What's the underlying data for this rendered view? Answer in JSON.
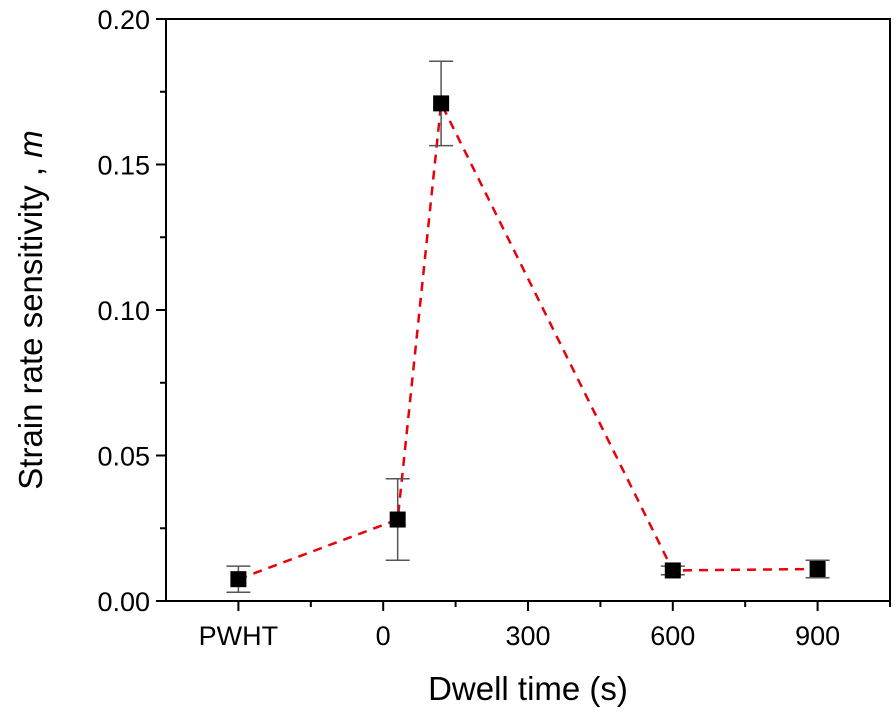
{
  "chart_data": {
    "type": "scatter",
    "xlabel": "Dwell time (s)",
    "ylabel": "Strain rate sensitivity , ",
    "ylabel_symbol": "m",
    "x_tick_labels": [
      {
        "value": -300,
        "label": "PWHT"
      },
      {
        "value": 0,
        "label": "0"
      },
      {
        "value": 300,
        "label": "300"
      },
      {
        "value": 600,
        "label": "600"
      },
      {
        "value": 900,
        "label": "900"
      }
    ],
    "y_ticks": [
      0.0,
      0.05,
      0.1,
      0.15,
      0.2
    ],
    "y_tick_labels": [
      "0.00",
      "0.05",
      "0.10",
      "0.15",
      "0.20"
    ],
    "xlim": [
      -450,
      1050
    ],
    "ylim": [
      0,
      0.2
    ],
    "grid": false,
    "line_color": "#e8000b",
    "marker_color": "#000000",
    "errorbar_color": "#555555",
    "series": [
      {
        "points": [
          {
            "x": -300,
            "y": 0.0075,
            "err": 0.0045
          },
          {
            "x": 30,
            "y": 0.028,
            "err": 0.014
          },
          {
            "x": 120,
            "y": 0.171,
            "err": 0.0145
          },
          {
            "x": 600,
            "y": 0.0105,
            "err": 0.0015
          },
          {
            "x": 900,
            "y": 0.011,
            "err": 0.003
          }
        ]
      }
    ]
  }
}
